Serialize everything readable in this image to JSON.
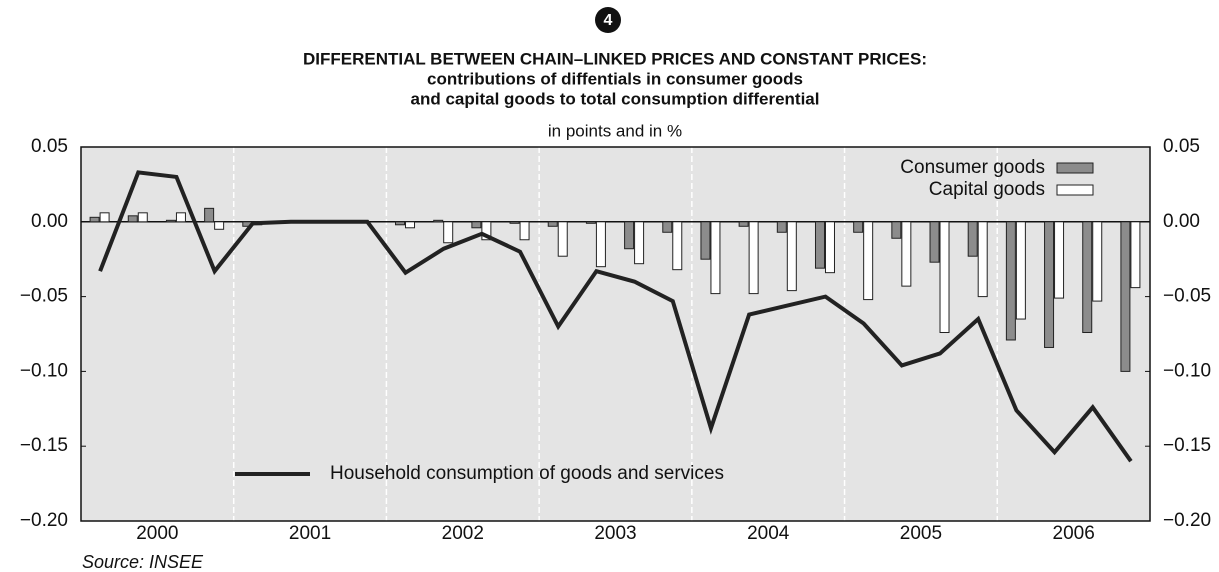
{
  "chart_data": {
    "type": "bar+line",
    "badge": "4",
    "title": "DIFFERENTIAL BETWEEN CHAIN–LINKED PRICES AND CONSTANT PRICES:",
    "subtitle_lines": [
      "contributions of diffentials in consumer goods",
      "and capital goods to total consumption differential"
    ],
    "units": "in points and in %",
    "source": "Source: INSEE",
    "categories": [
      null,
      "2000",
      null,
      null,
      null,
      "2001",
      null,
      null,
      null,
      "2002",
      null,
      null,
      null,
      "2003",
      null,
      null,
      null,
      "2004",
      null,
      null,
      null,
      "2005",
      null,
      null,
      null,
      "2006",
      null,
      null
    ],
    "series": [
      {
        "name": "Consumer goods",
        "type": "bar",
        "color": "#8c8c8c",
        "values": [
          0.003,
          0.004,
          0.001,
          0.009,
          -0.003,
          0,
          0,
          0,
          -0.002,
          0.001,
          -0.004,
          -0.001,
          -0.003,
          -0.001,
          -0.018,
          -0.007,
          -0.025,
          -0.003,
          -0.007,
          -0.031,
          -0.007,
          -0.011,
          -0.027,
          -0.023,
          -0.079,
          -0.084,
          -0.074,
          -0.1
        ]
      },
      {
        "name": "Capital goods",
        "type": "bar",
        "color": "#ffffff",
        "values": [
          0.006,
          0.006,
          0.006,
          -0.005,
          -0.002,
          0,
          0,
          0,
          -0.004,
          -0.014,
          -0.012,
          -0.012,
          -0.023,
          -0.03,
          -0.028,
          -0.032,
          -0.048,
          -0.048,
          -0.046,
          -0.034,
          -0.052,
          -0.043,
          -0.074,
          -0.05,
          -0.065,
          -0.051,
          -0.053,
          -0.044
        ]
      },
      {
        "name": "Household consumption of goods and services",
        "type": "line",
        "color": "#222222",
        "values": [
          -0.033,
          0.033,
          0.03,
          -0.033,
          -0.001,
          0,
          0,
          0,
          -0.034,
          -0.018,
          -0.008,
          -0.02,
          -0.07,
          -0.033,
          -0.04,
          -0.053,
          -0.138,
          -0.062,
          -0.056,
          -0.05,
          -0.068,
          -0.096,
          -0.088,
          -0.065,
          -0.126,
          -0.154,
          -0.124,
          -0.16
        ]
      }
    ],
    "ylim": [
      -0.2,
      0.05
    ],
    "yticks": [
      {
        "value": 0.05,
        "label": "0.05"
      },
      {
        "value": 0,
        "label": "0.00"
      },
      {
        "value": -0.05,
        "label": "−0.05"
      },
      {
        "value": -0.1,
        "label": "−0.10"
      },
      {
        "value": -0.15,
        "label": "−0.15"
      },
      {
        "value": -0.2,
        "label": "−0.20"
      }
    ],
    "y2lim": [
      -0.2,
      0.05
    ],
    "y2ticks": [
      {
        "value": 0.05,
        "label": "0.05"
      },
      {
        "value": 0,
        "label": "0.00"
      },
      {
        "value": -0.05,
        "label": "−0.05"
      },
      {
        "value": -0.1,
        "label": "−0.10"
      },
      {
        "value": -0.15,
        "label": "−0.15"
      },
      {
        "value": -0.2,
        "label": "−0.20"
      }
    ],
    "plot_background": "#e4e4e4"
  }
}
